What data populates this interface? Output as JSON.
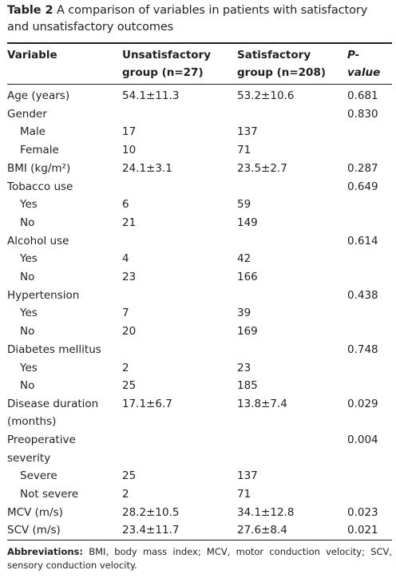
{
  "caption": {
    "label": "Table 2",
    "text": "A comparison of variables in patients with satisfactory and unsatisfactory outcomes"
  },
  "headers": {
    "variable": "Variable",
    "unsat_line1": "Unsatisfactory",
    "unsat_line2": "group (n=27)",
    "sat_line1": "Satisfactory",
    "sat_line2": "group (n=208)",
    "p_value": "P-value"
  },
  "rows": [
    {
      "variable": "Age (years)",
      "unsat": "54.1±11.3",
      "sat": "53.2±10.6",
      "p": "0.681"
    },
    {
      "variable": "Gender",
      "unsat": "",
      "sat": "",
      "p": "0.830"
    },
    {
      "variable": "Male",
      "unsat": "17",
      "sat": "137",
      "p": ""
    },
    {
      "variable": "Female",
      "unsat": "10",
      "sat": "71",
      "p": ""
    },
    {
      "variable": "BMI (kg/m²)",
      "unsat": "24.1±3.1",
      "sat": "23.5±2.7",
      "p": "0.287"
    },
    {
      "variable": "Tobacco use",
      "unsat": "",
      "sat": "",
      "p": "0.649"
    },
    {
      "variable": "Yes",
      "unsat": "6",
      "sat": "59",
      "p": ""
    },
    {
      "variable": "No",
      "unsat": "21",
      "sat": "149",
      "p": ""
    },
    {
      "variable": "Alcohol use",
      "unsat": "",
      "sat": "",
      "p": "0.614"
    },
    {
      "variable": "Yes",
      "unsat": "4",
      "sat": "42",
      "p": ""
    },
    {
      "variable": "No",
      "unsat": "23",
      "sat": "166",
      "p": ""
    },
    {
      "variable": "Hypertension",
      "unsat": "",
      "sat": "",
      "p": "0.438"
    },
    {
      "variable": "Yes",
      "unsat": "7",
      "sat": "39",
      "p": ""
    },
    {
      "variable": "No",
      "unsat": "20",
      "sat": "169",
      "p": ""
    },
    {
      "variable": "Diabetes mellitus",
      "unsat": "",
      "sat": "",
      "p": "0.748"
    },
    {
      "variable": "Yes",
      "unsat": "2",
      "sat": "23",
      "p": ""
    },
    {
      "variable": "No",
      "unsat": "25",
      "sat": "185",
      "p": ""
    },
    {
      "variable_line1": "Disease duration",
      "variable_line2": "(months)",
      "unsat": "17.1±6.7",
      "sat": "13.8±7.4",
      "p": "0.029"
    },
    {
      "variable": "Preoperative severity",
      "unsat": "",
      "sat": "",
      "p": "0.004"
    },
    {
      "variable": "Severe",
      "unsat": "25",
      "sat": "137",
      "p": ""
    },
    {
      "variable": "Not severe",
      "unsat": "2",
      "sat": "71",
      "p": ""
    },
    {
      "variable": "MCV (m/s)",
      "unsat": "28.2±10.5",
      "sat": "34.1±12.8",
      "p": "0.023"
    },
    {
      "variable": "SCV (m/s)",
      "unsat": "23.4±11.7",
      "sat": "27.6±8.4",
      "p": "0.021"
    }
  ],
  "footnote": {
    "label": "Abbreviations:",
    "text": "BMI, body mass index; MCV, motor conduction velocity; SCV, sensory conduction velocity."
  }
}
